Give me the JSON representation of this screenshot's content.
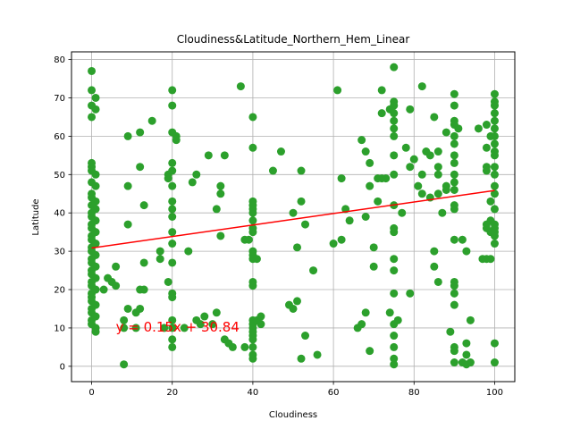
{
  "chart_data": {
    "type": "scatter",
    "title": "Cloudiness&Latitude_Northern_Hem_Linear",
    "xlabel": "Cloudiness",
    "ylabel": "Latitude",
    "xlim": [
      -5,
      105
    ],
    "ylim": [
      -4,
      82
    ],
    "xticks": [
      0,
      20,
      40,
      60,
      80,
      100
    ],
    "yticks": [
      0,
      10,
      20,
      30,
      40,
      50,
      60,
      70,
      80
    ],
    "grid": true,
    "point_color": "#2ca02c",
    "line_color": "#ff0000",
    "regression": {
      "slope": 0.15,
      "intercept": 30.84,
      "x_range": [
        0,
        100
      ]
    },
    "annotation": {
      "text": "y = 0.15x + 30.84",
      "x": 6,
      "y": 9,
      "color": "#ff0000"
    },
    "series": [
      {
        "points": [
          [
            0,
            77
          ],
          [
            0,
            72
          ],
          [
            0,
            68
          ],
          [
            0,
            65
          ],
          [
            1,
            70
          ],
          [
            1,
            67
          ],
          [
            0,
            53
          ],
          [
            0,
            52
          ],
          [
            0,
            51
          ],
          [
            1,
            50
          ],
          [
            0,
            48
          ],
          [
            1,
            47
          ],
          [
            0,
            45
          ],
          [
            0,
            44
          ],
          [
            1,
            43
          ],
          [
            0,
            42
          ],
          [
            1,
            41
          ],
          [
            0,
            40
          ],
          [
            0,
            39
          ],
          [
            1,
            38
          ],
          [
            0,
            37
          ],
          [
            0,
            36
          ],
          [
            1,
            35
          ],
          [
            0,
            34
          ],
          [
            0,
            33
          ],
          [
            1,
            32
          ],
          [
            0,
            31
          ],
          [
            0,
            30
          ],
          [
            1,
            29
          ],
          [
            0,
            28
          ],
          [
            0,
            27
          ],
          [
            1,
            26
          ],
          [
            0,
            25
          ],
          [
            0,
            24
          ],
          [
            1,
            23
          ],
          [
            0,
            22
          ],
          [
            0,
            21
          ],
          [
            1,
            20
          ],
          [
            0,
            19
          ],
          [
            0,
            18
          ],
          [
            0,
            17
          ],
          [
            1,
            16
          ],
          [
            0,
            15
          ],
          [
            0,
            14
          ],
          [
            1,
            13
          ],
          [
            0,
            12
          ],
          [
            0,
            11
          ],
          [
            1,
            10
          ],
          [
            1,
            9
          ],
          [
            3,
            20
          ],
          [
            4,
            23
          ],
          [
            5,
            22
          ],
          [
            6,
            21
          ],
          [
            6,
            26
          ],
          [
            8,
            10
          ],
          [
            8,
            12
          ],
          [
            8,
            0.5
          ],
          [
            9,
            60
          ],
          [
            9,
            47
          ],
          [
            9,
            37
          ],
          [
            9,
            15
          ],
          [
            11,
            10
          ],
          [
            11,
            14
          ],
          [
            12,
            20
          ],
          [
            12,
            15
          ],
          [
            12,
            52
          ],
          [
            12,
            61
          ],
          [
            13,
            42
          ],
          [
            13,
            20
          ],
          [
            13,
            27
          ],
          [
            15,
            64
          ],
          [
            17,
            28
          ],
          [
            17,
            30
          ],
          [
            18,
            10
          ],
          [
            19,
            49
          ],
          [
            19,
            50
          ],
          [
            19,
            22
          ],
          [
            20,
            68
          ],
          [
            20,
            72
          ],
          [
            20,
            61
          ],
          [
            20,
            53
          ],
          [
            20,
            51
          ],
          [
            20,
            47
          ],
          [
            20,
            43
          ],
          [
            20,
            41
          ],
          [
            20,
            39
          ],
          [
            20,
            35
          ],
          [
            20,
            32
          ],
          [
            20,
            27
          ],
          [
            20,
            19
          ],
          [
            20,
            18
          ],
          [
            20,
            12
          ],
          [
            20,
            10
          ],
          [
            20,
            7
          ],
          [
            20,
            5
          ],
          [
            21,
            60
          ],
          [
            21,
            59
          ],
          [
            23,
            10
          ],
          [
            24,
            30
          ],
          [
            25,
            48
          ],
          [
            26,
            50
          ],
          [
            26,
            12
          ],
          [
            27,
            11
          ],
          [
            28,
            13
          ],
          [
            29,
            55
          ],
          [
            30,
            11
          ],
          [
            31,
            14
          ],
          [
            31,
            41
          ],
          [
            32,
            47
          ],
          [
            32,
            45
          ],
          [
            32,
            34
          ],
          [
            33,
            55
          ],
          [
            33,
            7
          ],
          [
            34,
            6
          ],
          [
            35,
            5
          ],
          [
            37,
            73
          ],
          [
            38,
            33
          ],
          [
            38,
            5
          ],
          [
            39,
            33
          ],
          [
            40,
            65
          ],
          [
            40,
            57
          ],
          [
            40,
            43
          ],
          [
            40,
            42
          ],
          [
            40,
            41
          ],
          [
            40,
            40
          ],
          [
            40,
            38
          ],
          [
            40,
            36
          ],
          [
            40,
            35
          ],
          [
            40,
            30
          ],
          [
            40,
            29
          ],
          [
            40,
            28
          ],
          [
            40,
            22
          ],
          [
            40,
            21
          ],
          [
            40,
            12
          ],
          [
            40,
            11
          ],
          [
            40,
            10
          ],
          [
            40,
            9
          ],
          [
            40,
            8
          ],
          [
            40,
            7
          ],
          [
            40,
            5
          ],
          [
            40,
            3
          ],
          [
            40,
            2
          ],
          [
            41,
            28
          ],
          [
            41,
            12
          ],
          [
            42,
            13
          ],
          [
            42,
            11
          ],
          [
            45,
            51
          ],
          [
            47,
            56
          ],
          [
            49,
            16
          ],
          [
            50,
            15
          ],
          [
            50,
            40
          ],
          [
            51,
            31
          ],
          [
            51,
            17
          ],
          [
            52,
            43
          ],
          [
            52,
            51
          ],
          [
            52,
            2
          ],
          [
            53,
            37
          ],
          [
            53,
            8
          ],
          [
            55,
            25
          ],
          [
            56,
            3
          ],
          [
            60,
            32
          ],
          [
            61,
            72
          ],
          [
            62,
            49
          ],
          [
            62,
            33
          ],
          [
            63,
            41
          ],
          [
            64,
            38
          ],
          [
            66,
            10
          ],
          [
            67,
            11
          ],
          [
            67,
            59
          ],
          [
            68,
            39
          ],
          [
            68,
            56
          ],
          [
            68,
            14
          ],
          [
            69,
            53
          ],
          [
            69,
            47
          ],
          [
            69,
            4
          ],
          [
            70,
            31
          ],
          [
            70,
            26
          ],
          [
            71,
            43
          ],
          [
            71,
            49
          ],
          [
            72,
            72
          ],
          [
            72,
            66
          ],
          [
            72,
            49
          ],
          [
            73,
            49
          ],
          [
            74,
            14
          ],
          [
            74,
            67
          ],
          [
            75,
            78
          ],
          [
            75,
            69
          ],
          [
            75,
            68
          ],
          [
            75,
            66
          ],
          [
            75,
            64
          ],
          [
            75,
            62
          ],
          [
            75,
            60
          ],
          [
            75,
            55
          ],
          [
            75,
            50
          ],
          [
            75,
            42
          ],
          [
            75,
            36
          ],
          [
            75,
            35
          ],
          [
            75,
            28
          ],
          [
            75,
            25
          ],
          [
            75,
            19
          ],
          [
            75,
            11
          ],
          [
            75,
            8
          ],
          [
            75,
            5
          ],
          [
            75,
            2
          ],
          [
            75,
            0.5
          ],
          [
            76,
            12
          ],
          [
            77,
            40
          ],
          [
            78,
            57
          ],
          [
            79,
            67
          ],
          [
            79,
            52
          ],
          [
            79,
            19
          ],
          [
            80,
            54
          ],
          [
            81,
            47
          ],
          [
            82,
            73
          ],
          [
            82,
            50
          ],
          [
            82,
            45
          ],
          [
            83,
            56
          ],
          [
            84,
            44
          ],
          [
            84,
            55
          ],
          [
            85,
            65
          ],
          [
            85,
            30
          ],
          [
            85,
            26
          ],
          [
            86,
            22
          ],
          [
            86,
            52
          ],
          [
            86,
            50
          ],
          [
            86,
            45
          ],
          [
            86,
            56
          ],
          [
            87,
            40
          ],
          [
            88,
            61
          ],
          [
            88,
            47
          ],
          [
            88,
            46
          ],
          [
            89,
            9
          ],
          [
            90,
            71
          ],
          [
            90,
            68
          ],
          [
            90,
            64
          ],
          [
            90,
            63
          ],
          [
            90,
            60
          ],
          [
            90,
            58
          ],
          [
            90,
            55
          ],
          [
            90,
            53
          ],
          [
            90,
            50
          ],
          [
            90,
            48
          ],
          [
            90,
            46
          ],
          [
            90,
            42
          ],
          [
            90,
            41
          ],
          [
            90,
            33
          ],
          [
            90,
            22
          ],
          [
            90,
            21
          ],
          [
            90,
            19
          ],
          [
            90,
            16
          ],
          [
            90,
            5
          ],
          [
            90,
            4
          ],
          [
            90,
            1
          ],
          [
            91,
            62
          ],
          [
            92,
            33
          ],
          [
            92,
            1
          ],
          [
            93,
            30
          ],
          [
            93,
            6
          ],
          [
            93,
            3
          ],
          [
            93,
            0.5
          ],
          [
            94,
            12
          ],
          [
            94,
            1
          ],
          [
            96,
            62
          ],
          [
            97,
            28
          ],
          [
            98,
            63
          ],
          [
            98,
            57
          ],
          [
            98,
            52
          ],
          [
            98,
            51
          ],
          [
            98,
            37
          ],
          [
            98,
            36
          ],
          [
            98,
            28
          ],
          [
            99,
            28
          ],
          [
            99,
            60
          ],
          [
            99,
            43
          ],
          [
            99,
            38
          ],
          [
            99,
            35
          ],
          [
            100,
            71
          ],
          [
            100,
            69
          ],
          [
            100,
            68
          ],
          [
            100,
            66
          ],
          [
            100,
            64
          ],
          [
            100,
            62
          ],
          [
            100,
            60
          ],
          [
            100,
            58
          ],
          [
            100,
            56
          ],
          [
            100,
            55
          ],
          [
            100,
            52
          ],
          [
            100,
            50
          ],
          [
            100,
            47
          ],
          [
            100,
            45
          ],
          [
            100,
            41
          ],
          [
            100,
            37
          ],
          [
            100,
            36
          ],
          [
            100,
            35
          ],
          [
            100,
            34
          ],
          [
            100,
            32
          ],
          [
            100,
            6
          ],
          [
            100,
            1
          ]
        ]
      }
    ]
  }
}
